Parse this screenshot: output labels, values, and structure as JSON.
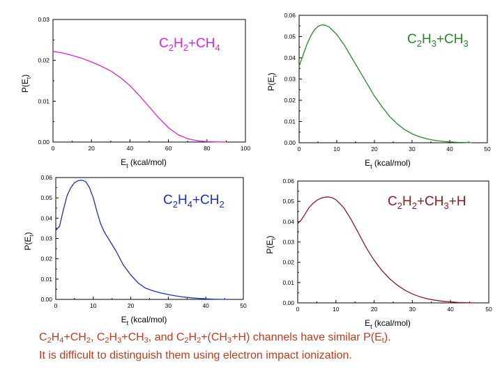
{
  "chart_data": [
    {
      "type": "line",
      "series_label": "C2H2+CH4",
      "color": "#dd22dd",
      "ylabel": "P(Et)",
      "xlabel": "Et (kcal/mol)",
      "xlim": [
        0,
        100
      ],
      "ylim": [
        0,
        0.03
      ],
      "xticks": [
        "0",
        "20",
        "40",
        "60",
        "80",
        "100"
      ],
      "yticks": [
        "0.00",
        "0.01",
        "0.02",
        "0.03"
      ],
      "x": [
        0,
        5,
        10,
        15,
        20,
        25,
        30,
        35,
        40,
        45,
        50,
        55,
        60,
        65,
        70,
        75,
        80,
        85,
        90
      ],
      "y": [
        0.0222,
        0.0218,
        0.0212,
        0.0205,
        0.0196,
        0.0186,
        0.0174,
        0.0158,
        0.0138,
        0.0113,
        0.0086,
        0.0059,
        0.0035,
        0.0018,
        0.0008,
        0.0003,
        0.0001,
        3e-05,
        0.0
      ]
    },
    {
      "type": "line",
      "series_label": "C2H3+CH3",
      "color": "#228822",
      "ylabel": "P(Et)",
      "xlabel": "Et (kcal/mol)",
      "xlim": [
        0,
        50
      ],
      "ylim": [
        0,
        0.06
      ],
      "xticks": [
        "0",
        "10",
        "20",
        "30",
        "40",
        "50"
      ],
      "yticks": [
        "0.00",
        "0.01",
        "0.02",
        "0.03",
        "0.04",
        "0.05",
        "0.06"
      ],
      "x": [
        0,
        1,
        2,
        3,
        4,
        5,
        6,
        7,
        8,
        10,
        12,
        14,
        16,
        18,
        20,
        22,
        24,
        26,
        28,
        30,
        32,
        34,
        36,
        38,
        40,
        42,
        44,
        46
      ],
      "y": [
        0.036,
        0.041,
        0.046,
        0.05,
        0.053,
        0.0548,
        0.0555,
        0.0553,
        0.0545,
        0.051,
        0.046,
        0.04,
        0.034,
        0.028,
        0.022,
        0.017,
        0.0125,
        0.009,
        0.0062,
        0.0042,
        0.0028,
        0.0018,
        0.0011,
        0.0007,
        0.0004,
        0.0002,
        0.0001,
        0.0
      ]
    },
    {
      "type": "line",
      "series_label": "C2H4+CH2",
      "color": "#1a2fc0",
      "ylabel": "P(Et)",
      "xlabel": "Et (kcal/mol)",
      "xlim": [
        0,
        50
      ],
      "ylim": [
        0,
        0.06
      ],
      "xticks": [
        "0",
        "10",
        "20",
        "30",
        "40",
        "50"
      ],
      "yticks": [
        "0.00",
        "0.01",
        "0.02",
        "0.03",
        "0.04",
        "0.05",
        "0.06"
      ],
      "x": [
        0,
        1,
        2,
        3,
        4,
        5,
        6,
        7,
        8,
        9,
        10,
        11,
        12,
        13,
        14,
        16,
        18,
        20,
        22,
        24,
        26,
        28,
        30,
        32,
        34,
        36,
        38,
        40,
        42,
        44,
        46
      ],
      "y": [
        0.034,
        0.036,
        0.044,
        0.051,
        0.055,
        0.0575,
        0.0585,
        0.0587,
        0.058,
        0.055,
        0.05,
        0.043,
        0.037,
        0.033,
        0.03,
        0.024,
        0.017,
        0.012,
        0.008,
        0.0055,
        0.0042,
        0.0032,
        0.0024,
        0.0017,
        0.0012,
        0.0008,
        0.0005,
        0.0003,
        0.0001,
        5e-05,
        0.0
      ]
    },
    {
      "type": "line",
      "series_label": "C2H2+CH3+H",
      "color": "#8b1a1a",
      "ylabel": "P(Et)",
      "xlabel": "Et (kcal/mol)",
      "xlim": [
        0,
        50
      ],
      "ylim": [
        0,
        0.06
      ],
      "xticks": [
        "0",
        "10",
        "20",
        "30",
        "40",
        "50"
      ],
      "yticks": [
        "0.00",
        "0.01",
        "0.02",
        "0.03",
        "0.04",
        "0.05",
        "0.06"
      ],
      "x": [
        0,
        1,
        2,
        3,
        4,
        5,
        6,
        7,
        8,
        9,
        10,
        12,
        14,
        16,
        18,
        20,
        22,
        24,
        26,
        28,
        30,
        32,
        34,
        36,
        38,
        40,
        42,
        44,
        46
      ],
      "y": [
        0.039,
        0.041,
        0.044,
        0.047,
        0.049,
        0.0505,
        0.0515,
        0.052,
        0.0522,
        0.0518,
        0.0508,
        0.047,
        0.041,
        0.034,
        0.027,
        0.021,
        0.016,
        0.012,
        0.0088,
        0.0063,
        0.0044,
        0.003,
        0.002,
        0.0013,
        0.0008,
        0.0005,
        0.0002,
        0.0001,
        0.0
      ]
    }
  ],
  "caption": {
    "line1_parts": [
      "C",
      "2",
      "H",
      "4",
      "+CH",
      "2",
      ", C",
      "2",
      "H",
      "3",
      "+CH",
      "3",
      ", and C",
      "2",
      "H",
      "2",
      "+(CH",
      "3",
      "+H) channels have similar P(E",
      "t",
      ")."
    ],
    "line2": "It is difficult to distinguish them using electron impact ionization."
  }
}
